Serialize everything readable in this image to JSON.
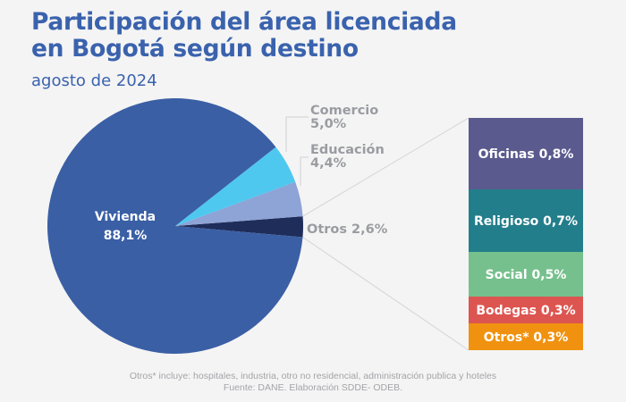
{
  "header": {
    "title_line1": "Participación del área licenciada",
    "title_line2": "en Bogotá según destino",
    "subtitle": "agosto de 2024"
  },
  "chart_data": [
    {
      "type": "pie",
      "title": "Participación del área licenciada en Bogotá según destino",
      "subtitle": "agosto de 2024",
      "unit": "%",
      "slices": [
        {
          "label": "Vivienda",
          "value": 88.1,
          "display": "88,1%",
          "color": "#3a5fa5"
        },
        {
          "label": "Comercio",
          "value": 5.0,
          "display": "5,0%",
          "color": "#4fc8f0"
        },
        {
          "label": "Educación",
          "value": 4.4,
          "display": "4,4%",
          "color": "#8ea3d6"
        },
        {
          "label": "Otros",
          "value": 2.6,
          "display": "2,6%",
          "color": "#1f2d5a"
        }
      ]
    },
    {
      "type": "bar",
      "stacked": true,
      "title": "Desglose de Otros 2,6%",
      "unit": "%",
      "segments": [
        {
          "label": "Oficinas",
          "value": 0.8,
          "display": "0,8%",
          "color": "#5a5a8e"
        },
        {
          "label": "Religioso",
          "value": 0.7,
          "display": "0,7%",
          "color": "#237e8b"
        },
        {
          "label": "Social",
          "value": 0.5,
          "display": "0,5%",
          "color": "#76c08d"
        },
        {
          "label": "Bodegas",
          "value": 0.3,
          "display": "0,3%",
          "color": "#dd5550"
        },
        {
          "label": "Otros*",
          "value": 0.3,
          "display": "0,3%",
          "color": "#f0920f"
        }
      ]
    }
  ],
  "footer": {
    "note": "Otros* incluye: hospitales, industria, otro no residencial, administración publica y hoteles",
    "source": "Fuente: DANE. Elaboración SDDE- ODEB."
  }
}
